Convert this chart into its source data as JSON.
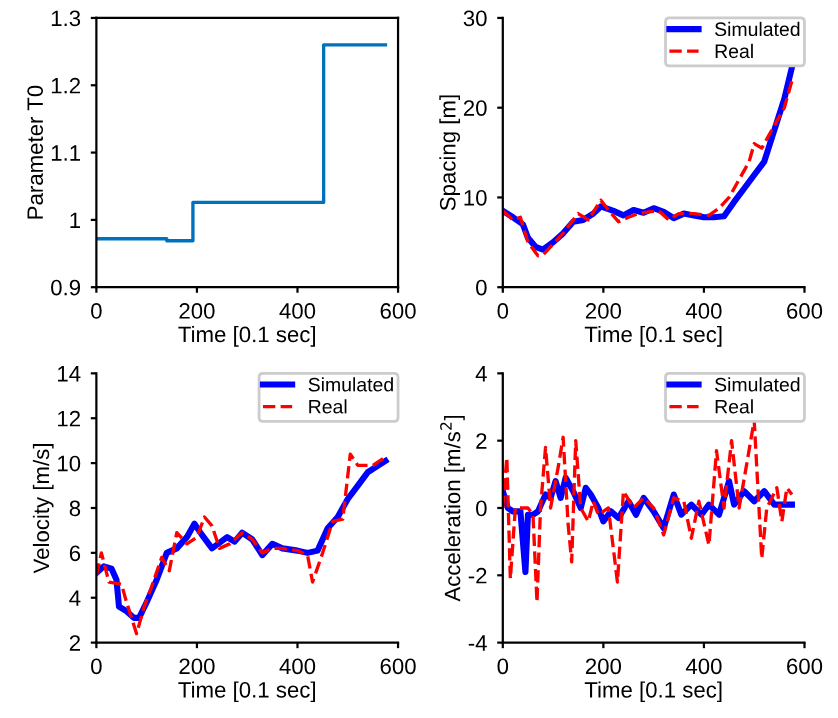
{
  "chart_data": [
    {
      "type": "step",
      "xlabel": "Time [0.1 sec]",
      "ylabel": "Parameter T0",
      "xlim": [
        0,
        600
      ],
      "xticks": [
        0,
        200,
        400,
        600
      ],
      "ylim": [
        0.9,
        1.3
      ],
      "yticks": [
        0.9,
        1,
        1.1,
        1.2,
        1.3
      ],
      "legend": false,
      "series": [
        {
          "color": "#0072bd",
          "x": [
            0,
            140,
            192,
            452,
            575
          ],
          "values": [
            0.972,
            0.969,
            1.026,
            1.26,
            1.26
          ]
        }
      ]
    },
    {
      "type": "line",
      "xlabel": "Time [0.1 sec]",
      "ylabel": "Spacing [m]",
      "xlim": [
        0,
        600
      ],
      "xticks": [
        0,
        200,
        400,
        600
      ],
      "ylim": [
        0,
        30
      ],
      "yticks": [
        0,
        10,
        20,
        30
      ],
      "legend": "top right",
      "series": [
        {
          "name": "Simulated",
          "color": "#0000ff",
          "line_style": "solid",
          "x": [
            0,
            20,
            40,
            50,
            65,
            80,
            100,
            120,
            140,
            160,
            180,
            195,
            220,
            240,
            260,
            280,
            300,
            320,
            340,
            360,
            380,
            400,
            420,
            440,
            460,
            480,
            500,
            520,
            540,
            560,
            575
          ],
          "values": [
            8.5,
            7.8,
            7,
            5.5,
            4.5,
            4.2,
            5,
            6,
            7.3,
            7.5,
            8.2,
            9,
            8.5,
            8,
            8.6,
            8.3,
            8.8,
            8.4,
            7.7,
            8.2,
            8,
            7.8,
            7.8,
            7.9,
            9.5,
            11,
            12.5,
            14,
            17.5,
            21,
            24.5
          ]
        },
        {
          "name": "Real",
          "color": "#ff0000",
          "line_style": "dashed",
          "x": [
            0,
            20,
            35,
            50,
            70,
            80,
            100,
            120,
            140,
            150,
            170,
            195,
            210,
            230,
            250,
            270,
            290,
            310,
            330,
            350,
            380,
            410,
            430,
            450,
            470,
            490,
            500,
            515,
            530,
            560,
            575
          ],
          "values": [
            8.5,
            7.5,
            7.8,
            5,
            3.5,
            3.6,
            4.8,
            6,
            7.5,
            8.2,
            7.5,
            9.7,
            8.6,
            7.3,
            7.8,
            8.2,
            8.4,
            8.5,
            7.5,
            8.2,
            8.2,
            8,
            8.8,
            10,
            12,
            14,
            16,
            15.5,
            17,
            20,
            23
          ]
        }
      ]
    },
    {
      "type": "line",
      "xlabel": "Time [0.1 sec]",
      "ylabel": "Velocity [m/s]",
      "xlim": [
        0,
        600
      ],
      "xticks": [
        0,
        200,
        400,
        600
      ],
      "ylim": [
        2,
        14
      ],
      "yticks": [
        2,
        4,
        6,
        8,
        10,
        12,
        14
      ],
      "legend": "top right",
      "series": [
        {
          "name": "Simulated",
          "color": "#0000ff",
          "line_style": "solid",
          "x": [
            0,
            15,
            30,
            40,
            45,
            60,
            75,
            85,
            100,
            120,
            140,
            160,
            180,
            195,
            210,
            230,
            260,
            275,
            290,
            310,
            330,
            350,
            370,
            400,
            420,
            440,
            460,
            480,
            500,
            520,
            540,
            575
          ],
          "values": [
            5.1,
            5.4,
            5.3,
            4.8,
            3.6,
            3.4,
            3.1,
            3.1,
            3.8,
            4.8,
            6,
            6.2,
            6.7,
            7.3,
            6.8,
            6.2,
            6.7,
            6.5,
            6.9,
            6.6,
            5.9,
            6.4,
            6.2,
            6.1,
            6.0,
            6.1,
            7.1,
            7.6,
            8.4,
            9.0,
            9.6,
            10.1
          ]
        },
        {
          "name": "Real",
          "color": "#ff0000",
          "line_style": "dashed",
          "x": [
            0,
            10,
            25,
            50,
            60,
            80,
            95,
            110,
            130,
            145,
            160,
            180,
            200,
            215,
            230,
            245,
            265,
            290,
            310,
            330,
            350,
            370,
            400,
            420,
            430,
            450,
            470,
            490,
            505,
            520,
            550,
            570
          ],
          "values": [
            5,
            6,
            4.7,
            4.6,
            3.8,
            2.4,
            3.6,
            4.5,
            5.8,
            5.2,
            6.9,
            6.4,
            6.7,
            7.6,
            7.2,
            6.2,
            6.4,
            6.9,
            6.6,
            6.0,
            6.2,
            6.2,
            6.1,
            5.9,
            4.7,
            6,
            7.4,
            7.5,
            10.4,
            9.9,
            9.9,
            10.2
          ]
        }
      ]
    },
    {
      "type": "line",
      "xlabel": "Time [0.1 sec]",
      "ylabel": "Acceleration [m/s$^{2}$]",
      "xlim": [
        0,
        600
      ],
      "xticks": [
        0,
        200,
        400,
        600
      ],
      "ylim": [
        -4,
        4
      ],
      "yticks": [
        {
          "value": -4,
          "label": "-4"
        },
        {
          "value": -2,
          "label": "-2"
        },
        0,
        2,
        4
      ],
      "legend": "top right",
      "series": [
        {
          "name": "Simulated",
          "color": "#0000ff",
          "line_style": "solid",
          "x": [
            0,
            10,
            20,
            35,
            45,
            50,
            60,
            70,
            85,
            95,
            105,
            115,
            125,
            140,
            155,
            165,
            175,
            190,
            200,
            215,
            230,
            250,
            265,
            280,
            300,
            320,
            340,
            355,
            375,
            395,
            410,
            430,
            450,
            460,
            480,
            500,
            520,
            540,
            575
          ],
          "values": [
            0.5,
            0,
            -0.1,
            -0.1,
            -1.9,
            -0.2,
            -0.2,
            -0.1,
            0.4,
            0.3,
            0.8,
            0.3,
            0.9,
            0.5,
            0,
            0.6,
            0.4,
            0,
            -0.4,
            -0.1,
            -0.3,
            0.2,
            -0.2,
            0.3,
            -0.1,
            -0.6,
            0.4,
            -0.2,
            0.1,
            -0.2,
            0.1,
            -0.2,
            0.8,
            0.1,
            0.5,
            0.2,
            0.5,
            0.1,
            0.1
          ]
        },
        {
          "name": "Real",
          "color": "#ff0000",
          "line_style": "dashed",
          "x": [
            0,
            8,
            15,
            25,
            50,
            60,
            68,
            75,
            85,
            95,
            110,
            120,
            130,
            137,
            145,
            155,
            170,
            180,
            190,
            210,
            228,
            240,
            260,
            280,
            300,
            320,
            340,
            360,
            375,
            390,
            410,
            425,
            440,
            455,
            470,
            500,
            515,
            525,
            545,
            555,
            565,
            575
          ],
          "values": [
            0,
            1.5,
            -2.1,
            0,
            0,
            -0.2,
            -2.8,
            0,
            1.8,
            0,
            1.2,
            2.1,
            -0.5,
            -1.6,
            2.0,
            0,
            -0.4,
            0.2,
            -0.2,
            0,
            -2.2,
            0.5,
            0,
            0.3,
            0,
            -0.8,
            0.3,
            0.2,
            -0.9,
            0.2,
            -1.1,
            1.7,
            0,
            2,
            0,
            2.6,
            -1.5,
            0,
            0.6,
            -0.4,
            0.6,
            0.4
          ]
        }
      ]
    }
  ]
}
